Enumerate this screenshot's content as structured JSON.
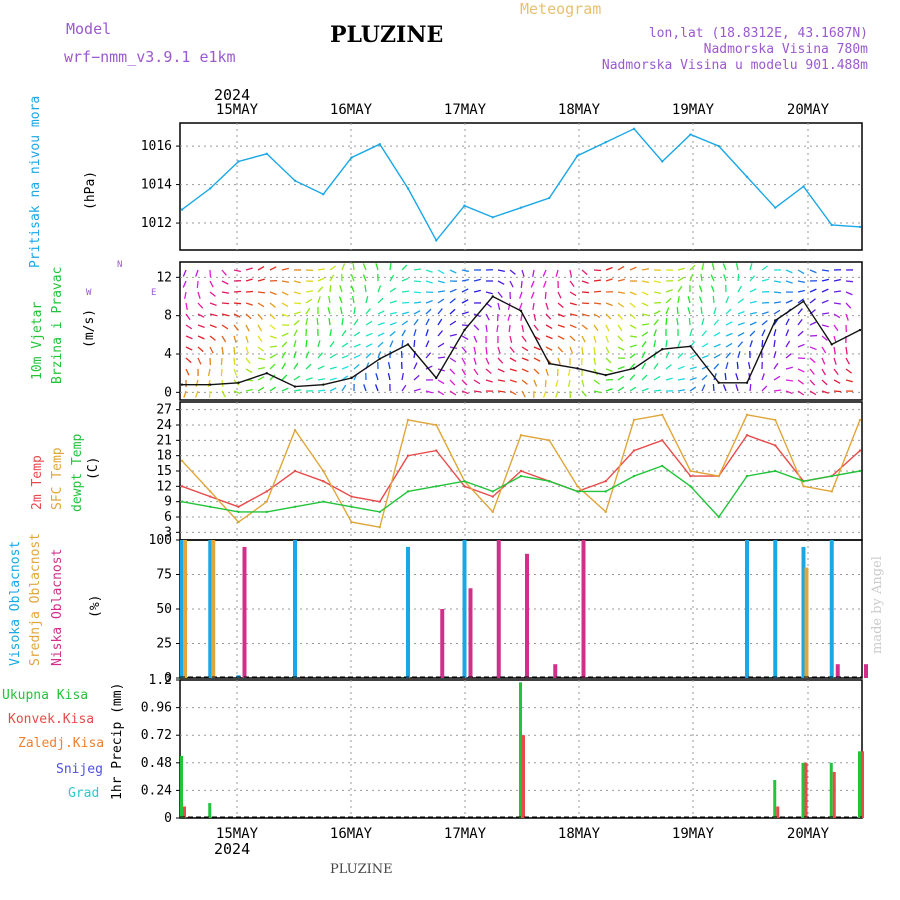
{
  "header": {
    "model_label": "Model",
    "model_name": "wrf−nmm_v3.9.1  e1km",
    "title": "PLUZINE",
    "meteogram": "Meteogram",
    "lonlat": "lon,lat (18.8312E, 43.1687N)",
    "altitude": "Nadmorska Visina 780m",
    "model_altitude": "Nadmorska Visina u modelu 901.488m",
    "footer_title": "PLUZINE",
    "watermark": "made by Angel",
    "year": "2024"
  },
  "colors": {
    "pressure": "#1aa7e6",
    "wind_label": "#22c43a",
    "temp_2m": "#e84a4a",
    "temp_sfc": "#e0a63a",
    "dewpoint": "#22c43a",
    "cloud_high": "#1aa7e6",
    "cloud_mid": "#e0a63a",
    "cloud_low": "#d0308a",
    "precip_total": "#22c43a",
    "precip_conv": "#e84a4a",
    "precip_frozen": "#f08030",
    "snow": "#5050e0",
    "hail": "#30c8c8",
    "model_text": "#9b59d0",
    "meteogram_text": "#e8c070"
  },
  "labels": {
    "pressure": "Pritisak na nivou mora",
    "pressure_unit": "(hPa)",
    "wind_1": "10m Vjetar",
    "wind_2": "Brzina i Pravac",
    "wind_unit": "(m/s)",
    "compass_w": "W",
    "compass_e": "E",
    "compass_n": "N",
    "temp_2m": "2m Temp",
    "temp_sfc": "SFC Temp",
    "temp_dew": "dewpt Temp",
    "temp_unit": "(C)",
    "cloud_high": "Visoka Oblacnost",
    "cloud_mid": "Srednja Oblacnost",
    "cloud_low": "Niska Oblacnost",
    "cloud_unit": "(%)",
    "precip_total": "Ukupna Kisa",
    "precip_conv": "Konvek.Kisa",
    "precip_frozen": "Zaledj.Kisa",
    "precip_snow": "Snijeg",
    "precip_hail": "Grad",
    "precip_unit": "1hr Precip (mm)"
  },
  "chart_data": [
    {
      "type": "line",
      "name": "pressure",
      "x": [
        "14MAY 12h",
        "14MAY 18h",
        "15MAY 00h",
        "15MAY 06h",
        "15MAY 12h",
        "15MAY 18h",
        "16MAY 00h",
        "16MAY 06h",
        "16MAY 12h",
        "16MAY 18h",
        "17MAY 00h",
        "17MAY 06h",
        "17MAY 12h",
        "17MAY 18h",
        "18MAY 00h",
        "18MAY 06h",
        "18MAY 12h",
        "18MAY 18h",
        "19MAY 00h",
        "19MAY 06h",
        "19MAY 12h",
        "19MAY 18h",
        "20MAY 00h",
        "20MAY 06h",
        "20MAY 12h"
      ],
      "ticks_x": [
        "15MAY",
        "16MAY",
        "17MAY",
        "18MAY",
        "19MAY",
        "20MAY"
      ],
      "yticks": [
        1012,
        1014,
        1016
      ],
      "ylim": [
        1010.6,
        1017.2
      ],
      "series": [
        {
          "values": [
            1012.7,
            1013.8,
            1015.2,
            1015.6,
            1014.2,
            1013.5,
            1015.4,
            1016.1,
            1013.8,
            1011.1,
            1012.9,
            1012.3,
            1012.8,
            1013.3,
            1015.5,
            1016.2,
            1016.9,
            1015.2,
            1016.6,
            1016.0,
            1014.4,
            1012.8,
            1013.9,
            1011.9,
            1011.8
          ]
        }
      ]
    },
    {
      "type": "line",
      "name": "wind",
      "x": [
        "14MAY 12h",
        "14MAY 18h",
        "15MAY 00h",
        "15MAY 06h",
        "15MAY 12h",
        "15MAY 18h",
        "16MAY 00h",
        "16MAY 06h",
        "16MAY 12h",
        "16MAY 18h",
        "17MAY 00h",
        "17MAY 06h",
        "17MAY 12h",
        "17MAY 18h",
        "18MAY 00h",
        "18MAY 06h",
        "18MAY 12h",
        "18MAY 18h",
        "19MAY 00h",
        "19MAY 06h",
        "19MAY 12h",
        "19MAY 18h",
        "20MAY 00h",
        "20MAY 06h",
        "20MAY 12h"
      ],
      "yticks": [
        0,
        4,
        8,
        12
      ],
      "ylim": [
        -0.8,
        13.6
      ],
      "series": [
        {
          "values": [
            0.8,
            0.8,
            1.0,
            2.0,
            0.6,
            0.8,
            1.5,
            3.5,
            5.0,
            1.5,
            6.5,
            10.0,
            8.5,
            3.0,
            2.5,
            1.8,
            2.5,
            4.5,
            4.8,
            1.0,
            1.0,
            7.5,
            9.5,
            5.0,
            6.5
          ]
        }
      ]
    },
    {
      "type": "line",
      "name": "temperature",
      "yticks": [
        3,
        6,
        9,
        12,
        15,
        18,
        21,
        24,
        27
      ],
      "ylim": [
        1.5,
        28.5
      ],
      "series": [
        {
          "name": "2m Temp",
          "values": [
            12,
            10,
            8,
            11,
            15,
            13,
            10,
            9,
            18,
            19,
            12,
            10,
            15,
            13,
            11,
            13,
            19,
            21,
            14,
            14,
            22,
            20,
            13,
            14,
            19
          ]
        },
        {
          "name": "SFC Temp",
          "values": [
            17,
            11,
            5,
            9,
            23,
            15,
            5,
            4,
            25,
            24,
            13,
            7,
            22,
            21,
            12,
            7,
            25,
            26,
            15,
            14,
            26,
            25,
            12,
            11,
            25
          ]
        },
        {
          "name": "dewpt Temp",
          "values": [
            9,
            8,
            7,
            7,
            8,
            9,
            8,
            7,
            11,
            12,
            13,
            11,
            14,
            13,
            11,
            11,
            14,
            16,
            12,
            6,
            14,
            15,
            13,
            14,
            15
          ]
        }
      ]
    },
    {
      "type": "bar",
      "name": "cloud_cover",
      "yticks": [
        0,
        25,
        50,
        75,
        100
      ],
      "ylim": [
        0,
        100
      ],
      "series": [
        {
          "name": "Visoka Oblacnost",
          "values": [
            100,
            100,
            2,
            0,
            100,
            0,
            0,
            0,
            95,
            0,
            100,
            0,
            0,
            0,
            0,
            0,
            0,
            0,
            0,
            0,
            100,
            100,
            95,
            100,
            0
          ]
        },
        {
          "name": "Srednja Oblacnost",
          "values": [
            100,
            100,
            0,
            0,
            0,
            0,
            0,
            0,
            0,
            0,
            0,
            0,
            0,
            0,
            0,
            0,
            0,
            0,
            0,
            0,
            0,
            0,
            80,
            0,
            0
          ]
        },
        {
          "name": "Niska Oblacnost",
          "values": [
            0,
            0,
            95,
            0,
            0,
            0,
            0,
            0,
            0,
            50,
            65,
            100,
            90,
            10,
            100,
            0,
            0,
            0,
            0,
            0,
            0,
            0,
            0,
            10,
            10
          ]
        }
      ]
    },
    {
      "type": "bar",
      "name": "precipitation",
      "yticks": [
        0,
        0.24,
        0.48,
        0.72,
        0.96,
        1.2
      ],
      "ylim": [
        0,
        1.2
      ],
      "series": [
        {
          "name": "Ukupna Kisa",
          "values": [
            0.54,
            0.13,
            0,
            0,
            0,
            0,
            0,
            0,
            0,
            0,
            0,
            0,
            1.18,
            0,
            0,
            0,
            0,
            0,
            0,
            0,
            0,
            0.33,
            0.48,
            0.48,
            0.58
          ]
        },
        {
          "name": "Konvek.Kisa",
          "values": [
            0.1,
            0,
            0,
            0,
            0,
            0,
            0,
            0,
            0,
            0,
            0,
            0,
            0.72,
            0,
            0,
            0,
            0,
            0,
            0,
            0,
            0,
            0.1,
            0.48,
            0.4,
            0.58
          ]
        }
      ]
    }
  ]
}
